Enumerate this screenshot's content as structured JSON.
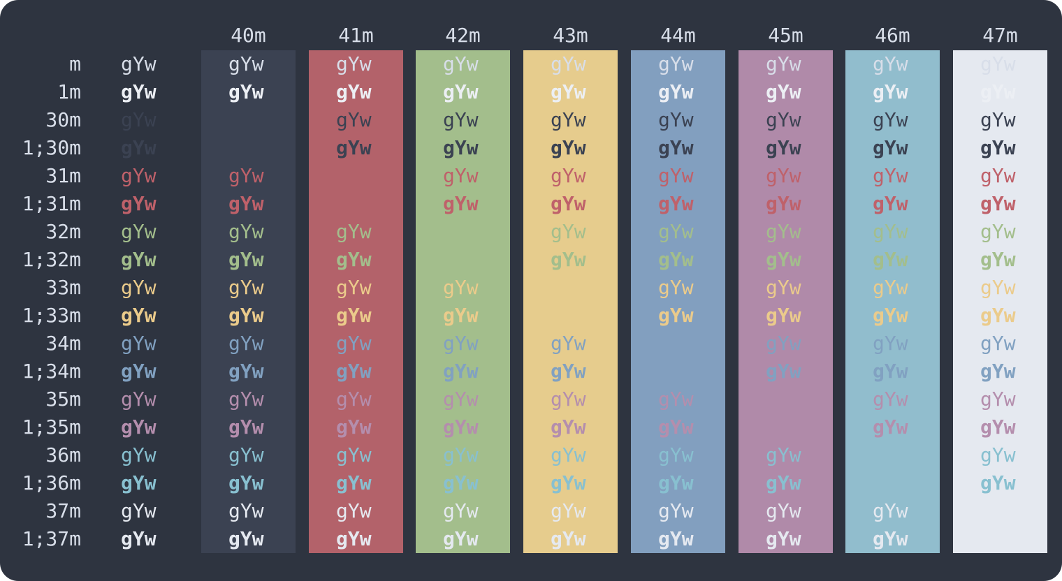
{
  "palette": {
    "30": "#3b4252",
    "31": "#bf616a",
    "32": "#a3be8c",
    "33": "#ebcb8b",
    "34": "#81a1c1",
    "35": "#b48ead",
    "36": "#88c0d0",
    "37": "#e5e9f0",
    "default_fg": "#d8dee9",
    "default_bold_fg": "#eceff4"
  },
  "backgrounds": {
    "40m": "#3b4252",
    "41m": "#b3626a",
    "42m": "#a3be8c",
    "43m": "#e6cc8d",
    "44m": "#829fbf",
    "45m": "#b08aa9",
    "46m": "#91bdcd",
    "47m": "#e5e9f0"
  },
  "column_headers": [
    "40m",
    "41m",
    "42m",
    "43m",
    "44m",
    "45m",
    "46m",
    "47m"
  ],
  "row_labels": [
    "m",
    "1m",
    "30m",
    "1;30m",
    "31m",
    "1;31m",
    "32m",
    "1;32m",
    "33m",
    "1;33m",
    "34m",
    "1;34m",
    "35m",
    "1;35m",
    "36m",
    "1;36m",
    "37m",
    "1;37m"
  ],
  "sample_text": "gYw",
  "hidden_cells": [
    "30m|40m",
    "1;30m|40m",
    "31m|41m",
    "1;31m|41m",
    "32m|42m",
    "1;32m|42m",
    "33m|43m",
    "1;33m|43m",
    "34m|44m",
    "1;34m|44m",
    "35m|45m",
    "1;35m|45m",
    "36m|46m",
    "1;36m|46m",
    "37m|47m",
    "1;37m|47m"
  ]
}
